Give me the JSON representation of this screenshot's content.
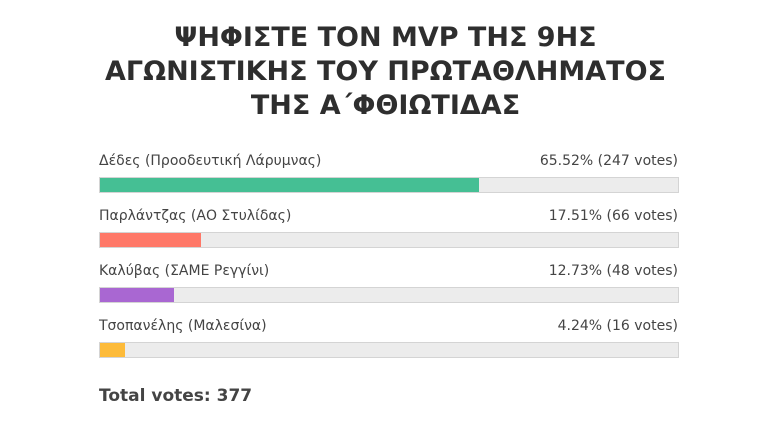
{
  "poll": {
    "title_lines": [
      "ΨΗΦΙΣΤΕ ΤΟΝ MVP ΤΗΣ 9ΗΣ",
      "ΑΓΩΝΙΣΤΙΚΗΣ ΤΟΥ ΠΡΩΤΑΘΛΗΜΑΤΟΣ",
      "ΤΗΣ Α΄ΦΘΙΩΤΙΔΑΣ"
    ],
    "xlim": [
      0,
      100
    ],
    "options": [
      {
        "label": "Δέδες (Προοδευτική Λάρυμνας)",
        "percent": 65.52,
        "votes": 247,
        "value_label": "65.52% (247 votes)",
        "color": "#45bf94"
      },
      {
        "label": "Παρλάντζας (ΑΟ Στυλίδας)",
        "percent": 17.51,
        "votes": 66,
        "value_label": "17.51% (66 votes)",
        "color": "#ff7868"
      },
      {
        "label": "Καλύβας (ΣΑΜΕ Ρεγγίνι)",
        "percent": 12.73,
        "votes": 48,
        "value_label": "12.73% (48 votes)",
        "color": "#a967d2"
      },
      {
        "label": "Τσοπανέλης (Μαλεσίνα)",
        "percent": 4.24,
        "votes": 16,
        "value_label": "4.24% (16 votes)",
        "color": "#fdbb3a"
      }
    ],
    "total_label": "Total votes: 377"
  }
}
